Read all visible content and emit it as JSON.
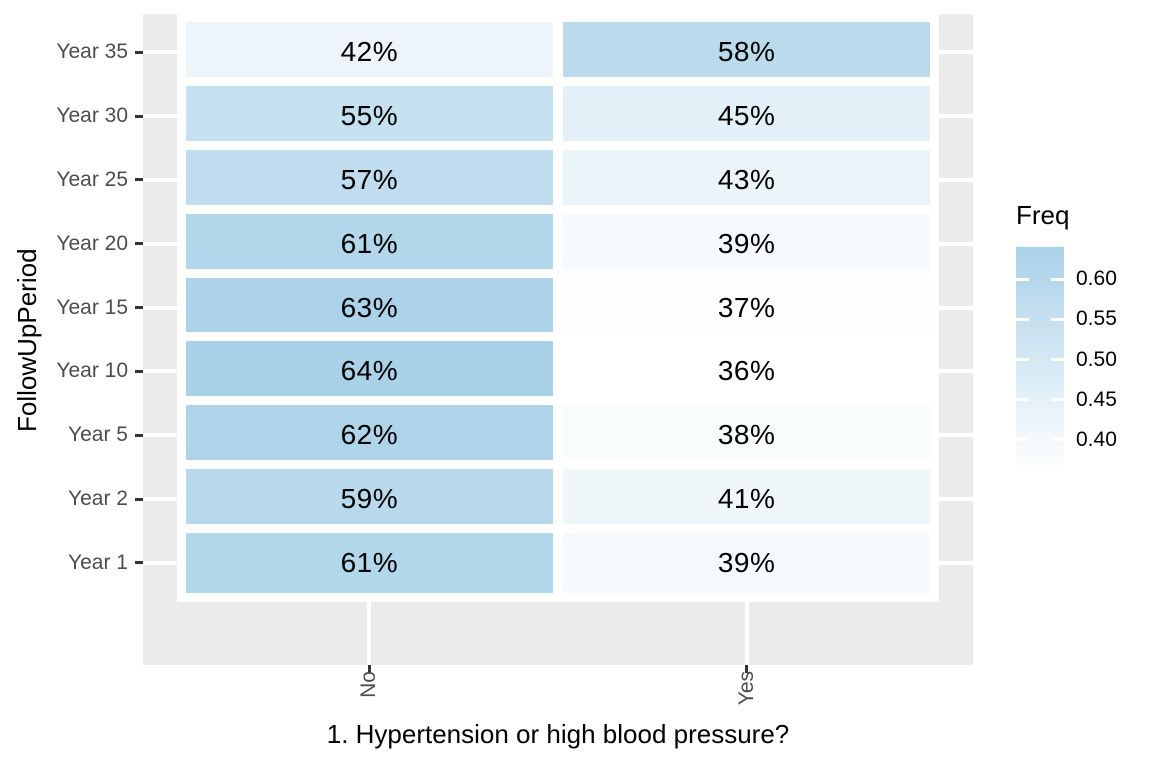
{
  "chart_data": {
    "type": "heatmap",
    "title": "",
    "xlabel": "1. Hypertension or high blood pressure?",
    "ylabel": "FollowUpPeriod",
    "x_categories": [
      "No",
      "Yes"
    ],
    "y_categories": [
      "Year 35",
      "Year 30",
      "Year 25",
      "Year 20",
      "Year 15",
      "Year 10",
      "Year 5",
      "Year 2",
      "Year 1"
    ],
    "series": [
      {
        "name": "No",
        "values": [
          0.42,
          0.55,
          0.57,
          0.61,
          0.63,
          0.64,
          0.62,
          0.59,
          0.61
        ],
        "labels": [
          "42%",
          "55%",
          "57%",
          "61%",
          "63%",
          "64%",
          "62%",
          "59%",
          "61%"
        ]
      },
      {
        "name": "Yes",
        "values": [
          0.58,
          0.45,
          0.43,
          0.39,
          0.37,
          0.36,
          0.38,
          0.41,
          0.39
        ],
        "labels": [
          "58%",
          "45%",
          "43%",
          "39%",
          "37%",
          "36%",
          "38%",
          "41%",
          "39%"
        ]
      }
    ],
    "legend": {
      "title": "Freq",
      "position": "right",
      "tick_labels": [
        "0.60",
        "0.55",
        "0.50",
        "0.45",
        "0.40"
      ],
      "tick_values": [
        0.6,
        0.55,
        0.5,
        0.45,
        0.4
      ],
      "domain": [
        0.36,
        0.64
      ],
      "color_low": "#FFFFFF",
      "color_high": "#A9D1E8"
    },
    "layout_hints": {
      "grid": "white major gridlines at category centers",
      "panel_background": "gray",
      "x_tick_label_rotation_deg": 90,
      "tile_border": "white"
    },
    "style": {
      "panel_bg": "#EBEBEB",
      "grid_color": "#FFFFFF",
      "tick_color": "#333333",
      "axis_text_color": "#4D4D4D",
      "label_text_color": "#000000"
    }
  }
}
